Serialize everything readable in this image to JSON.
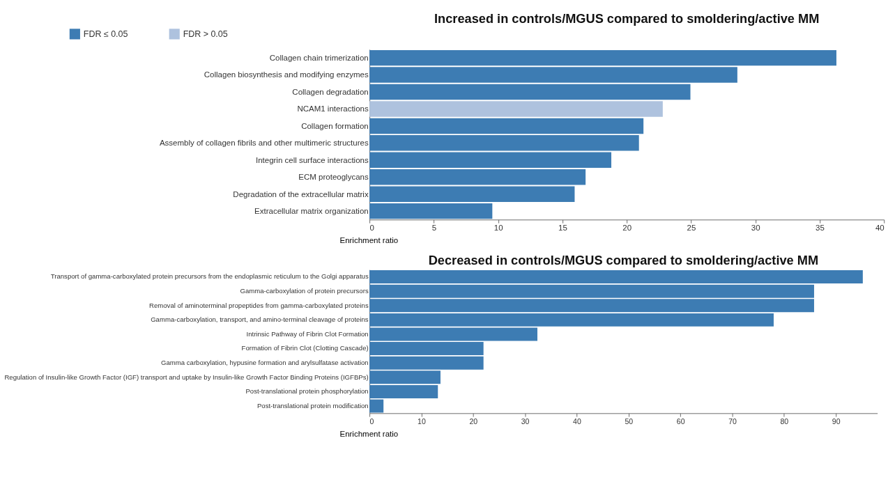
{
  "chart_data": [
    {
      "type": "bar",
      "orientation": "horizontal",
      "title": "Increased in controls/MGUS compared to smoldering/active MM",
      "xlabel": "Enrichment ratio",
      "categories": [
        "Collagen chain trimerization",
        "Collagen biosynthesis and modifying enzymes",
        "Collagen degradation",
        "NCAM1 interactions",
        "Collagen formation",
        "Assembly of collagen fibrils and other multimeric structures",
        "Integrin cell surface interactions",
        "ECM proteoglycans",
        "Degradation of the extracellular matrix",
        "Extracellular matrix organization"
      ],
      "series": [
        {
          "name": "FDR ≤ 0.05",
          "color": "#3d7cb3",
          "values": [
            36.3,
            28.6,
            24.95,
            null,
            21.3,
            20.95,
            18.8,
            16.8,
            15.95,
            9.55
          ]
        },
        {
          "name": "FDR > 0.05",
          "color": "#aec2de",
          "values": [
            null,
            null,
            null,
            22.8,
            null,
            null,
            null,
            null,
            null,
            null
          ]
        }
      ],
      "xlim": [
        0,
        40
      ],
      "xticks": [
        0,
        5,
        10,
        15,
        20,
        25,
        30,
        35,
        40
      ],
      "grid": false,
      "legend": "top left"
    },
    {
      "type": "bar",
      "orientation": "horizontal",
      "title": "Decreased in controls/MGUS compared to smoldering/active MM",
      "xlabel": "Enrichment ratio",
      "categories": [
        "Transport of gamma-carboxylated protein precursors from the endoplasmic reticulum to the Golgi apparatus",
        "Gamma-carboxylation of protein precursors",
        "Removal of aminoterminal propeptides from gamma-carboxylated proteins",
        "Gamma-carboxylation, transport, and amino-terminal cleavage of proteins",
        "Intrinsic Pathway of Fibrin Clot Formation",
        "Formation of Fibrin Clot (Clotting Cascade)",
        "Gamma carboxylation, hypusine formation and arylsulfatase activation",
        "Regulation of Insulin-like Growth Factor (IGF) transport and uptake by Insulin-like Growth Factor Binding Proteins (IGFBPs)",
        "Post-translational protein phosphorylation",
        "Post-translational protein modification"
      ],
      "series": [
        {
          "color": "#3d7cb3",
          "values": [
            95.2,
            85.8,
            85.8,
            78.0,
            32.4,
            22.0,
            22.0,
            13.7,
            13.2,
            2.7
          ]
        }
      ],
      "xlim": [
        0,
        98
      ],
      "xticks": [
        0,
        10,
        20,
        30,
        40,
        50,
        60,
        70,
        80,
        90
      ],
      "grid": false,
      "legend": false
    }
  ]
}
